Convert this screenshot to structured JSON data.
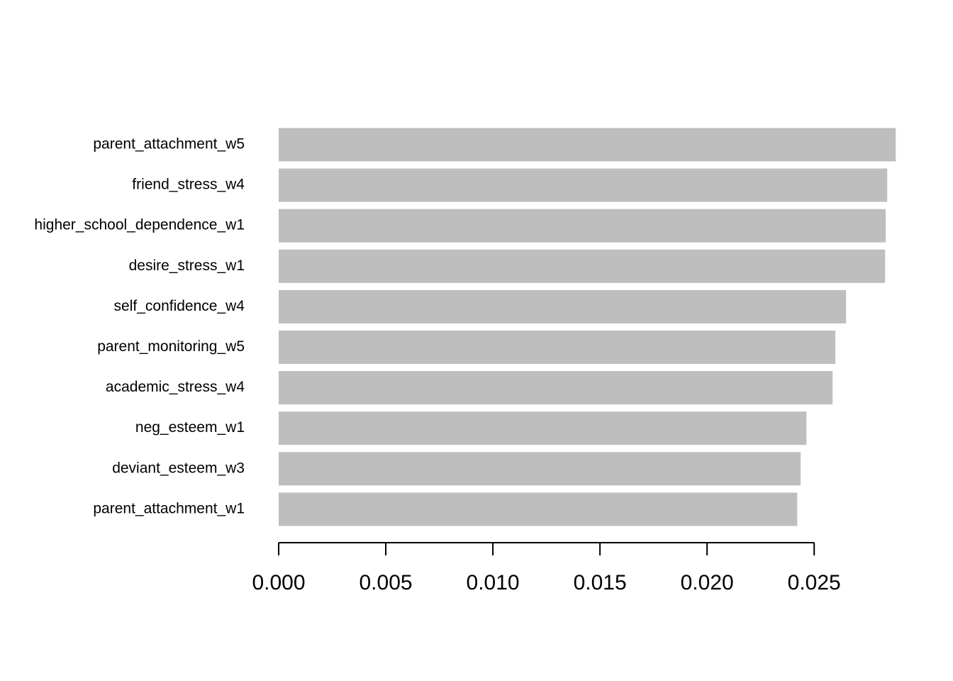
{
  "chart_data": {
    "type": "barh",
    "categories": [
      "parent_attachment_w5",
      "friend_stress_w4",
      "higher_school_dependence_w1",
      "desire_stress_w1",
      "self_confidence_w4",
      "parent_monitoring_w5",
      "academic_stress_w4",
      "neg_esteem_w1",
      "deviant_esteem_w3",
      "parent_attachment_w1"
    ],
    "values": [
      0.02881,
      0.02841,
      0.02834,
      0.02831,
      0.02649,
      0.02599,
      0.02586,
      0.02464,
      0.02437,
      0.02421
    ],
    "color": "#bebebe",
    "xlim": [
      0,
      0.0288
    ],
    "xticks": [
      {
        "value": 0,
        "label": "0.000"
      },
      {
        "value": 0.005,
        "label": "0.005"
      },
      {
        "value": 0.01,
        "label": "0.010"
      },
      {
        "value": 0.015,
        "label": "0.015"
      },
      {
        "value": 0.02,
        "label": "0.020"
      },
      {
        "value": 0.025,
        "label": "0.025"
      }
    ]
  }
}
